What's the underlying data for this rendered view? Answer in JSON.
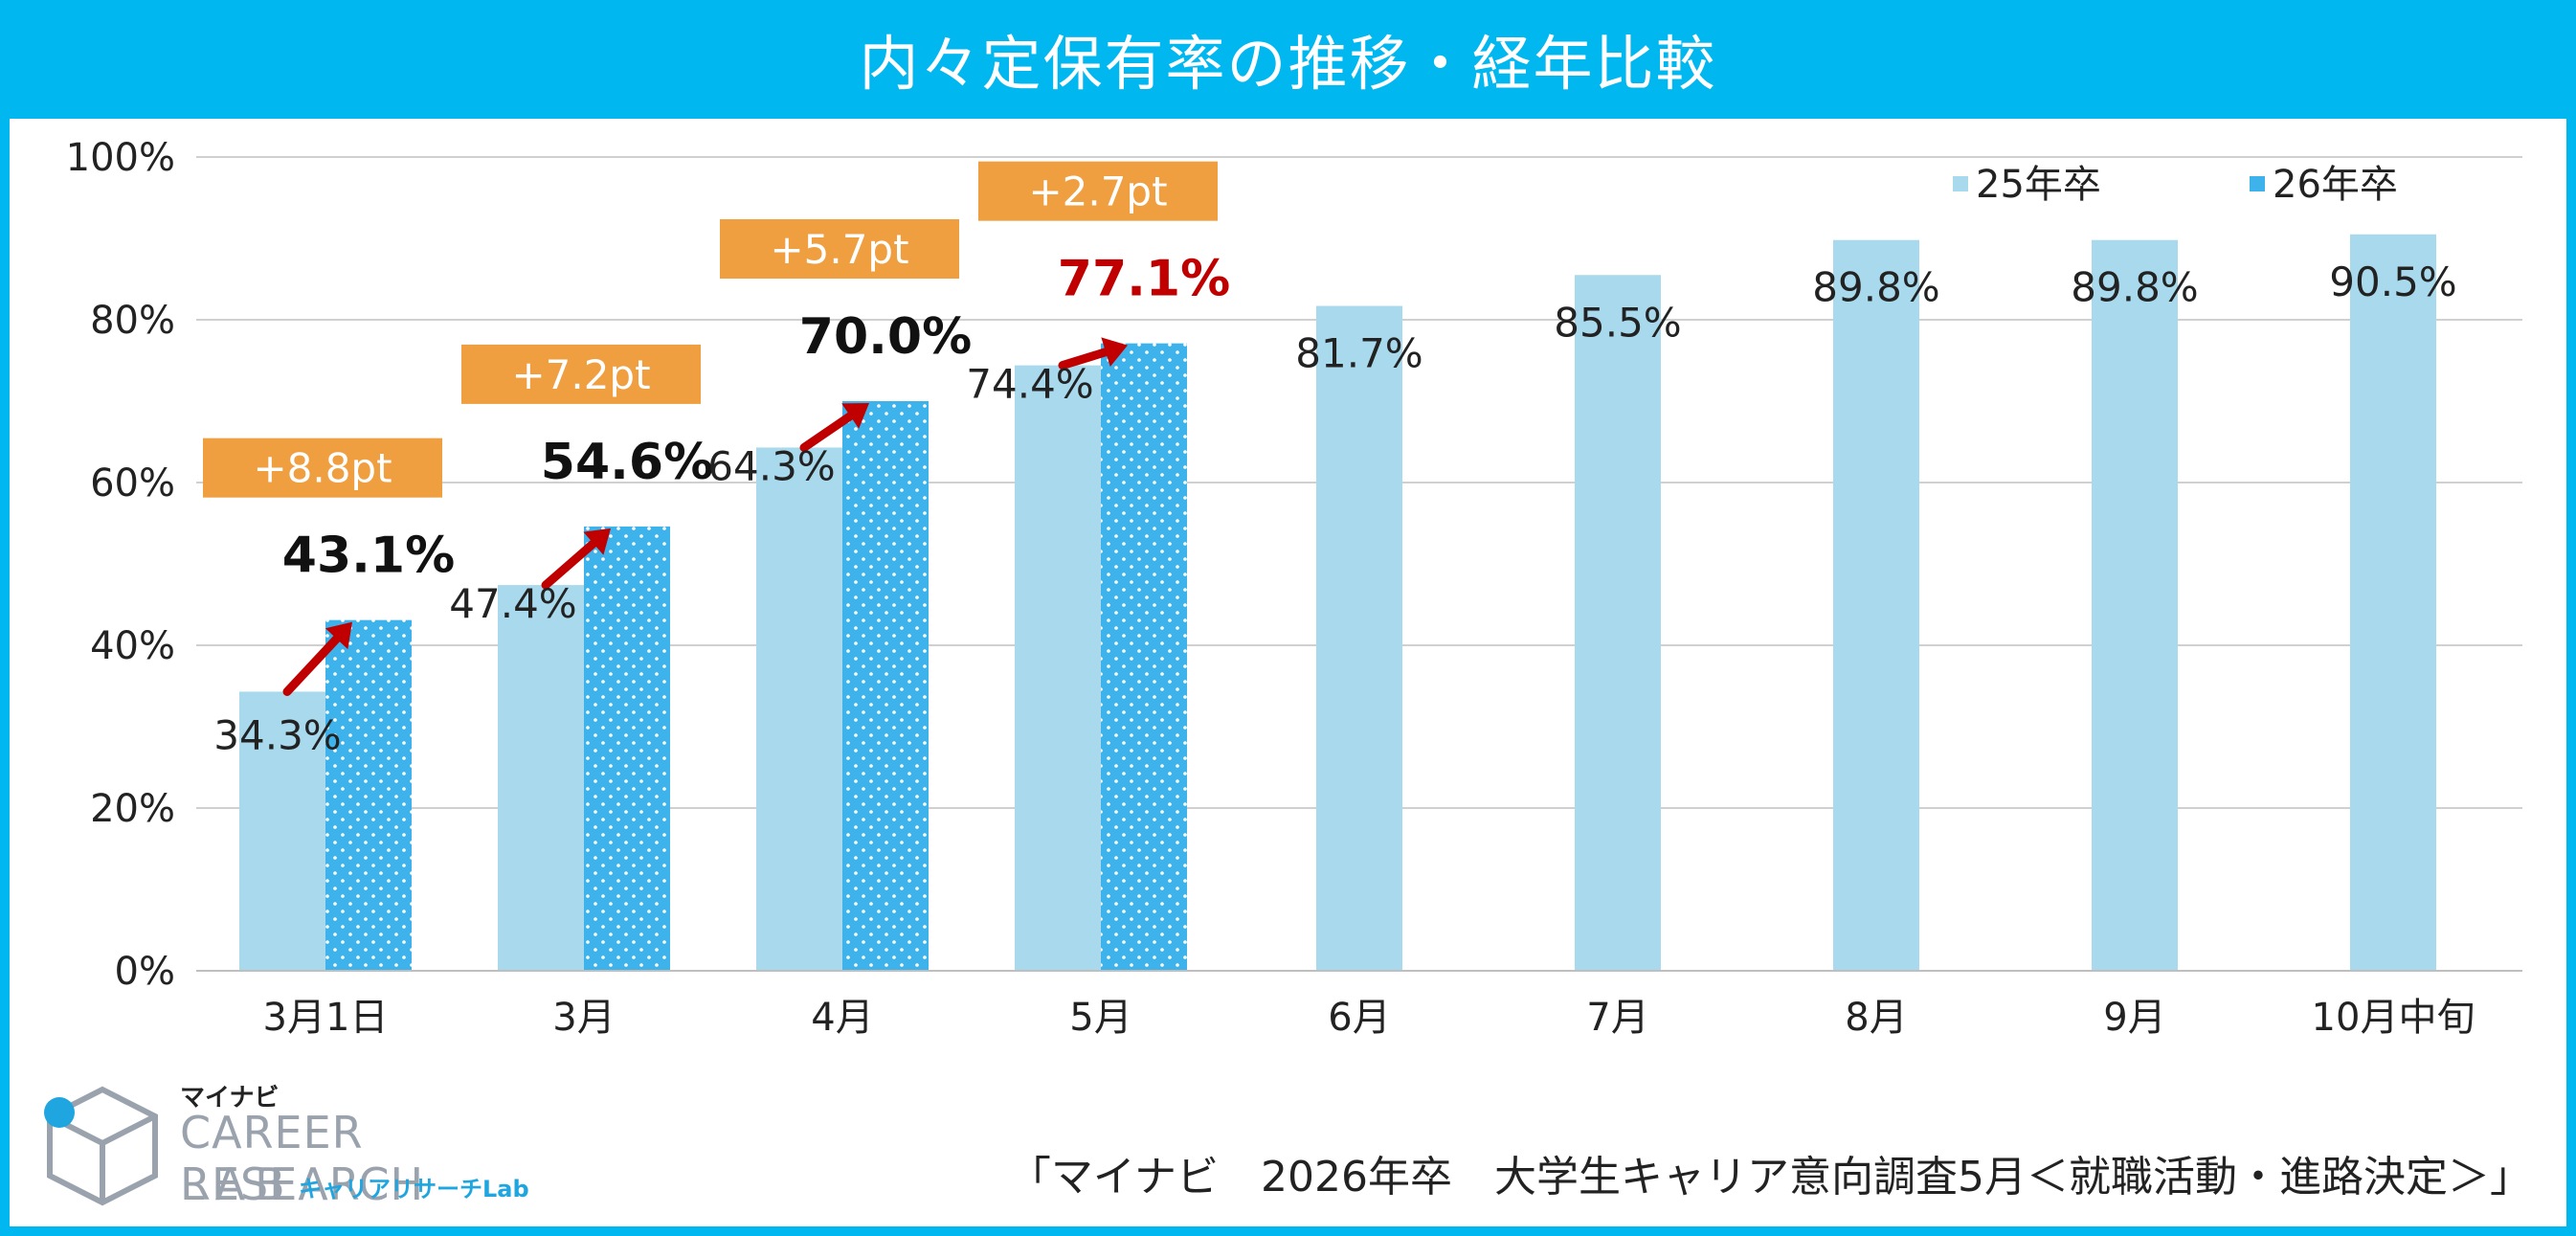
{
  "title": "内々定保有率の推移・経年比較",
  "source_note": "「マイナビ　2026年卒　大学生キャリア意向調査5月＜就職活動・進路決定＞」",
  "logo": {
    "brand_small": "マイナビ",
    "line1": "CAREER RESEARCH",
    "line2": "LAB",
    "subtitle": "キャリアリサーチLab"
  },
  "colors": {
    "header": "#00b7f0",
    "series_25": "#a9d9ec",
    "series_26": "#3eb2ea",
    "badge": "#ef9f40",
    "arrow": "#c00000",
    "highlight_text": "#c00000"
  },
  "chart_data": {
    "type": "bar",
    "categories": [
      "3月1日",
      "3月",
      "4月",
      "5月",
      "6月",
      "7月",
      "8月",
      "9月",
      "10月中旬"
    ],
    "series": [
      {
        "name": "25年卒",
        "values": [
          34.3,
          47.4,
          64.3,
          74.4,
          81.7,
          85.5,
          89.8,
          89.8,
          90.5
        ],
        "labels": [
          "34.3%",
          "47.4%",
          "64.3%",
          "74.4%",
          "81.7%",
          "85.5%",
          "89.8%",
          "89.8%",
          "90.5%"
        ]
      },
      {
        "name": "26年卒",
        "values": [
          43.1,
          54.6,
          70.0,
          77.1,
          null,
          null,
          null,
          null,
          null
        ],
        "labels": [
          "43.1%",
          "54.6%",
          "70.0%",
          "77.1%"
        ]
      }
    ],
    "differences": [
      "+8.8pt",
      "+7.2pt",
      "+5.7pt",
      "+2.7pt"
    ],
    "ylim": [
      0,
      100
    ],
    "yticks": [
      "0%",
      "20%",
      "40%",
      "60%",
      "80%",
      "100%"
    ],
    "grid": true,
    "legend_position": "top-right"
  }
}
